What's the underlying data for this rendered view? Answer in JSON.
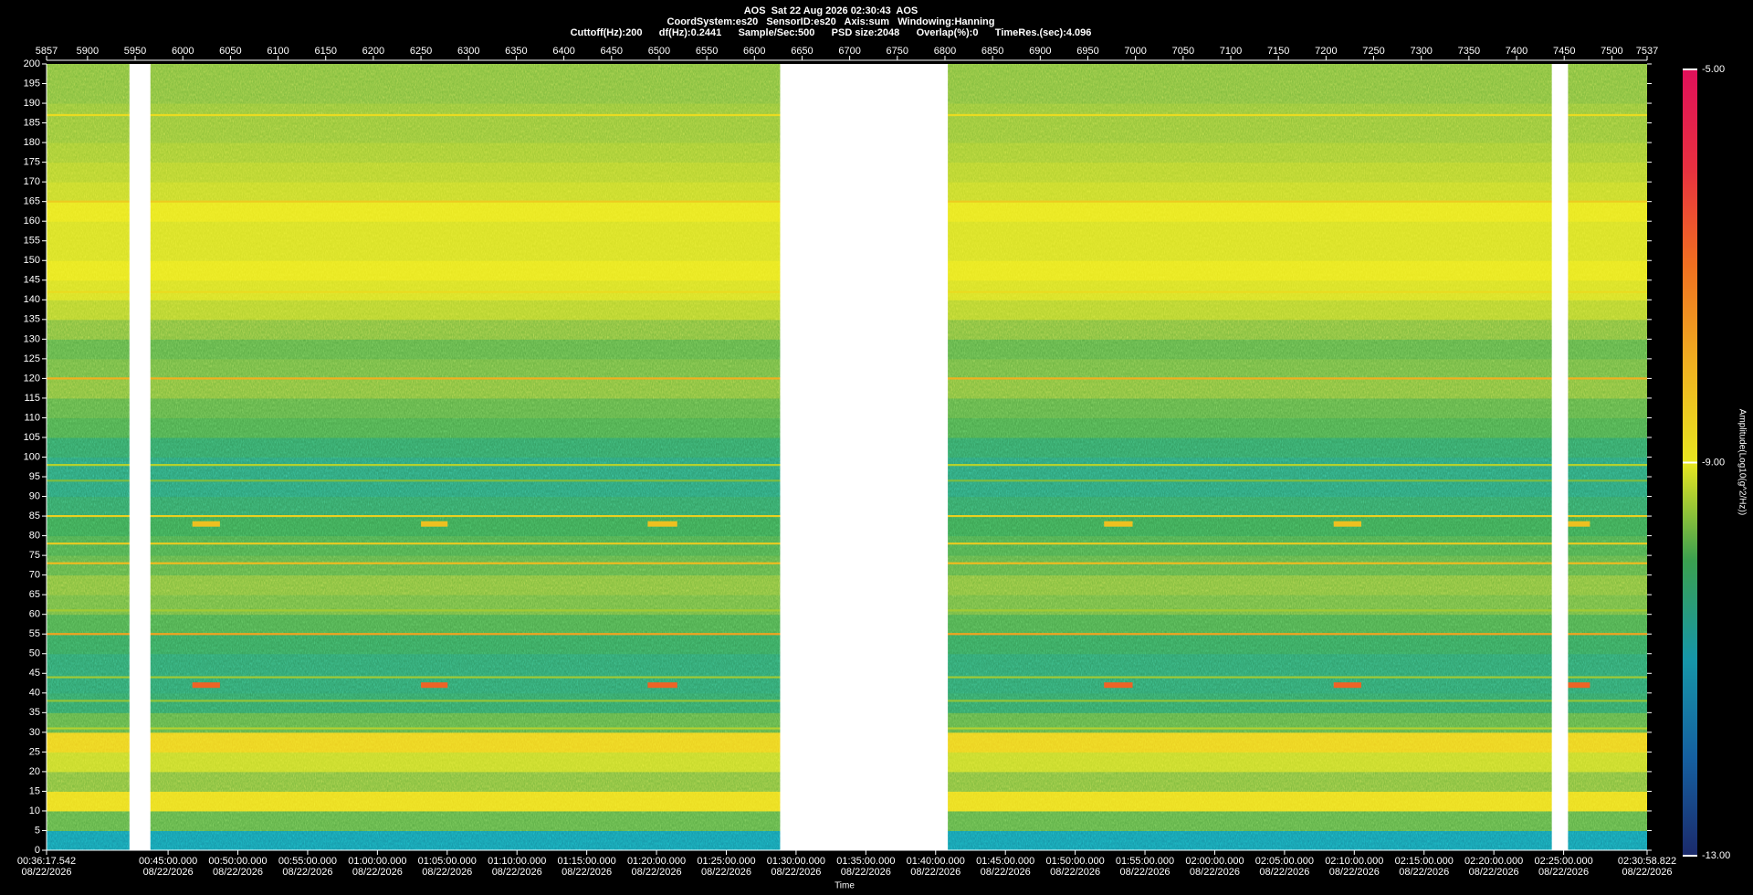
{
  "chart_data": {
    "type": "spectrogram",
    "title": "AOS  Sat 22 Aug 2026 02:30:43  AOS",
    "subtitle": [
      "CoordSystem:es20   SensorID:es20   Axis:sum   Windowing:Hanning",
      "Cuttoff(Hz):200      df(Hz):0.2441      Sample/Sec:500      PSD size:2048      Overlap(%):0      TimeRes.(sec):4.096"
    ],
    "xlim": [
      5857,
      7537
    ],
    "xticks": [
      5857,
      5900,
      5950,
      6000,
      6050,
      6100,
      6150,
      6200,
      6250,
      6300,
      6350,
      6400,
      6450,
      6500,
      6550,
      6600,
      6650,
      6700,
      6750,
      6800,
      6850,
      6900,
      6950,
      7000,
      7050,
      7100,
      7150,
      7200,
      7250,
      7300,
      7350,
      7400,
      7450,
      7500,
      7537
    ],
    "ylim": [
      0,
      200
    ],
    "yticks": [
      0,
      5,
      10,
      15,
      20,
      25,
      30,
      35,
      40,
      45,
      50,
      55,
      60,
      65,
      70,
      75,
      80,
      85,
      90,
      95,
      100,
      105,
      110,
      115,
      120,
      125,
      130,
      135,
      140,
      145,
      150,
      155,
      160,
      165,
      170,
      175,
      180,
      185,
      190,
      195,
      200
    ],
    "time_axis": {
      "label": "Time",
      "lim": [
        2177.542,
        9058.822
      ],
      "ticks": [
        {
          "value": 2177.542,
          "label": "00:36:17.542",
          "date": "08/22/2026"
        },
        {
          "value": 2700,
          "label": "00:45:00.000",
          "date": "08/22/2026"
        },
        {
          "value": 3000,
          "label": "00:50:00.000",
          "date": "08/22/2026"
        },
        {
          "value": 3300,
          "label": "00:55:00.000",
          "date": "08/22/2026"
        },
        {
          "value": 3600,
          "label": "01:00:00.000",
          "date": "08/22/2026"
        },
        {
          "value": 3900,
          "label": "01:05:00.000",
          "date": "08/22/2026"
        },
        {
          "value": 4200,
          "label": "01:10:00.000",
          "date": "08/22/2026"
        },
        {
          "value": 4500,
          "label": "01:15:00.000",
          "date": "08/22/2026"
        },
        {
          "value": 4800,
          "label": "01:20:00.000",
          "date": "08/22/2026"
        },
        {
          "value": 5100,
          "label": "01:25:00.000",
          "date": "08/22/2026"
        },
        {
          "value": 5400,
          "label": "01:30:00.000",
          "date": "08/22/2026"
        },
        {
          "value": 5700,
          "label": "01:35:00.000",
          "date": "08/22/2026"
        },
        {
          "value": 6000,
          "label": "01:40:00.000",
          "date": "08/22/2026"
        },
        {
          "value": 6300,
          "label": "01:45:00.000",
          "date": "08/22/2026"
        },
        {
          "value": 6600,
          "label": "01:50:00.000",
          "date": "08/22/2026"
        },
        {
          "value": 6900,
          "label": "01:55:00.000",
          "date": "08/22/2026"
        },
        {
          "value": 7200,
          "label": "02:00:00.000",
          "date": "08/22/2026"
        },
        {
          "value": 7500,
          "label": "02:05:00.000",
          "date": "08/22/2026"
        },
        {
          "value": 7800,
          "label": "02:10:00.000",
          "date": "08/22/2026"
        },
        {
          "value": 8100,
          "label": "02:15:00.000",
          "date": "08/22/2026"
        },
        {
          "value": 8400,
          "label": "02:20:00.000",
          "date": "08/22/2026"
        },
        {
          "value": 8700,
          "label": "02:25:00.000",
          "date": "08/22/2026"
        },
        {
          "value": 9058.822,
          "label": "02:30:58.822",
          "date": "08/22/2026"
        }
      ]
    },
    "band_edges": [
      0,
      5,
      10,
      15,
      20,
      25,
      30,
      35,
      40,
      45,
      50,
      55,
      60,
      65,
      70,
      75,
      80,
      85,
      90,
      95,
      100,
      105,
      110,
      115,
      120,
      125,
      130,
      135,
      140,
      145,
      150,
      155,
      160,
      165,
      170,
      175,
      180,
      185,
      190,
      195,
      200
    ],
    "band_amplitudes": [
      -11.0,
      -9.8,
      -8.8,
      -9.6,
      -9.2,
      -8.6,
      -9.8,
      -10.2,
      -10.3,
      -10.3,
      -10.1,
      -9.9,
      -9.7,
      -9.6,
      -9.8,
      -9.9,
      -10.0,
      -10.2,
      -10.4,
      -10.4,
      -10.2,
      -9.9,
      -9.8,
      -9.6,
      -9.7,
      -9.8,
      -9.6,
      -9.3,
      -9.1,
      -9.0,
      -9.1,
      -9.1,
      -9.0,
      -9.2,
      -9.3,
      -9.4,
      -9.5,
      -9.5,
      -9.6,
      -9.6
    ],
    "tones": {
      "freqs": [
        187,
        165,
        142,
        120,
        98,
        94,
        85,
        78,
        73,
        61,
        55,
        44,
        38,
        31
      ],
      "amplitudes": [
        -8.8,
        -8.5,
        -8.8,
        -8.0,
        -9.3,
        -9.6,
        -8.6,
        -8.5,
        -8.2,
        -9.4,
        -7.8,
        -9.4,
        -9.5,
        -9.3
      ]
    },
    "bursts": [
      {
        "start": 6010,
        "end": 6039,
        "freq": 83,
        "amplitude": -8.3
      },
      {
        "start": 6010,
        "end": 6039,
        "freq": 42,
        "amplitude": -6.8
      },
      {
        "start": 6250,
        "end": 6278,
        "freq": 83,
        "amplitude": -8.3
      },
      {
        "start": 6250,
        "end": 6278,
        "freq": 42,
        "amplitude": -6.8
      },
      {
        "start": 6488,
        "end": 6519,
        "freq": 83,
        "amplitude": -8.3
      },
      {
        "start": 6488,
        "end": 6519,
        "freq": 42,
        "amplitude": -6.8
      },
      {
        "start": 6967,
        "end": 6997,
        "freq": 83,
        "amplitude": -8.3
      },
      {
        "start": 6967,
        "end": 6997,
        "freq": 42,
        "amplitude": -6.8
      },
      {
        "start": 7208,
        "end": 7237,
        "freq": 83,
        "amplitude": -8.3
      },
      {
        "start": 7208,
        "end": 7237,
        "freq": 42,
        "amplitude": -6.8
      },
      {
        "start": 7454,
        "end": 7477,
        "freq": 83,
        "amplitude": -8.3
      },
      {
        "start": 7454,
        "end": 7477,
        "freq": 42,
        "amplitude": -6.8
      }
    ],
    "gaps": [
      [
        5944,
        5966
      ],
      [
        6627,
        6803
      ],
      [
        7437,
        7454
      ]
    ],
    "colorbar": {
      "label": "Amplitude(Log10(g^2/Hz))",
      "lim": [
        -13,
        -5
      ],
      "ticks": [
        {
          "value": -5,
          "label": "-5.00"
        },
        {
          "value": -9,
          "label": "-9.00"
        },
        {
          "value": -13,
          "label": "-13.00"
        }
      ],
      "colormap": [
        "#1b2a6b",
        "#1560a0",
        "#1696a8",
        "#3aa050",
        "#e8e620",
        "#f0b020",
        "#f07020",
        "#e83040",
        "#e0105a"
      ]
    }
  }
}
